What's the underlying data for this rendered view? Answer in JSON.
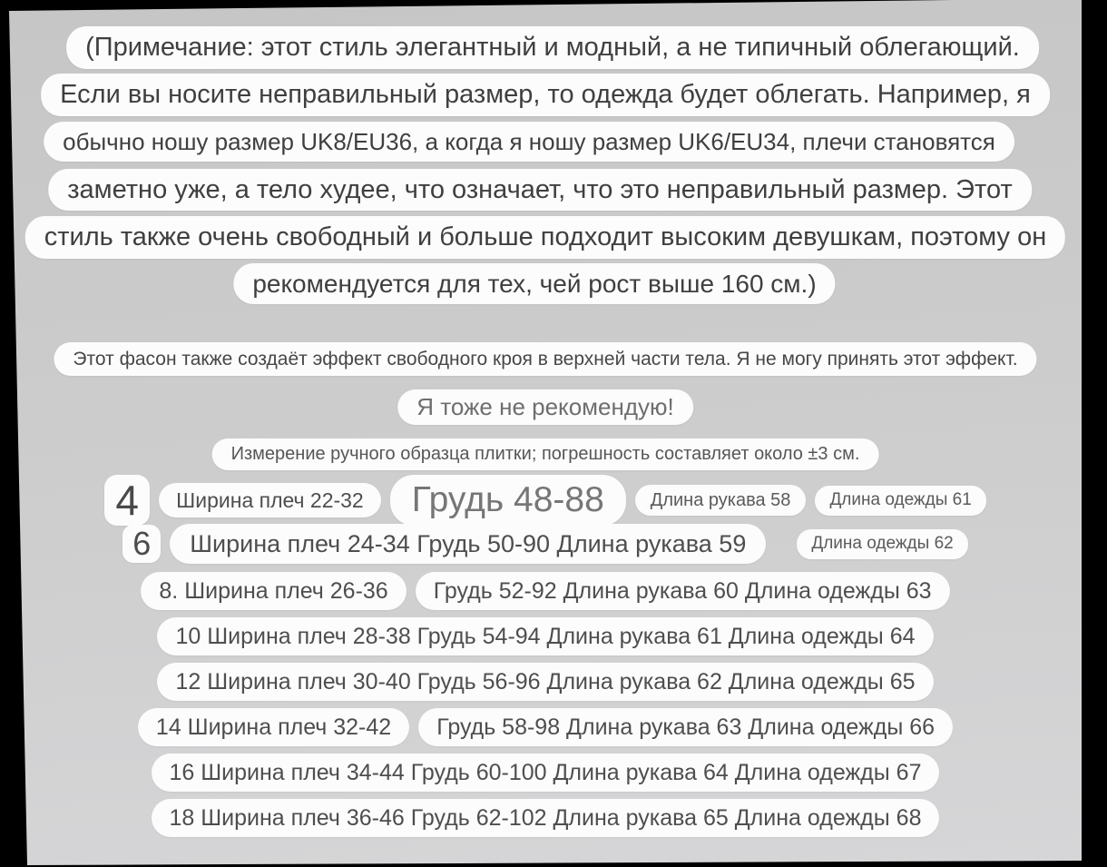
{
  "colors": {
    "frame": "#000000",
    "background_top": "#c6c6c6",
    "background_bottom": "#d6d6d8",
    "bubble": "#fcfcfc",
    "text": "#3f3f3f"
  },
  "messages": {
    "note_lines": [
      "(Примечание: этот стиль элегантный и модный, а не типичный облегающий.",
      "Если вы носите неправильный размер, то одежда будет облегать. Например, я",
      "обычно ношу размер UK8/EU36, а когда я ношу размер UK6/EU34, плечи становятся",
      "заметно уже, а тело худее, что означает, что это неправильный размер. Этот",
      "стиль также очень свободный и больше подходит высоким девушкам, поэтому он",
      "рекомендуется для тех, чей рост выше 160 см.)"
    ],
    "effect_note": "Этот фасон также создаёт эффект свободного кроя в верхней части тела. Я не могу принять этот эффект.",
    "recommendation": "Я тоже не рекомендую!",
    "measurement_note": "Измерение ручного образца плитки; погрешность составляет около ±3 см."
  },
  "size_table": {
    "rows": [
      {
        "size": "4",
        "segments": [
          {
            "variant": "chip-lg",
            "text": "4"
          },
          {
            "variant": "md",
            "text": "Ширина плеч 22-32"
          },
          {
            "variant": "xl",
            "text": "Грудь 48-88"
          },
          {
            "variant": "sm",
            "text": "Длина рукава 58"
          },
          {
            "variant": "xs",
            "text": "Длина одежды 61"
          }
        ]
      },
      {
        "size": "6",
        "segments": [
          {
            "variant": "chip-md",
            "text": "6"
          },
          {
            "variant": "wide",
            "text": "Ширина плеч 24-34 Грудь 50-90 Длина рукава 59"
          },
          {
            "variant": "xs",
            "text": "Длина одежды 62",
            "gap_before": true
          }
        ]
      },
      {
        "size": "8",
        "segments": [
          {
            "variant": "std",
            "text": "8. Ширина плеч 26-36"
          },
          {
            "variant": "std",
            "text": "Грудь 52-92 Длина рукава 60 Длина одежды 63"
          }
        ]
      },
      {
        "size": "10",
        "segments": [
          {
            "variant": "std",
            "text": "10 Ширина плеч 28-38 Грудь 54-94 Длина рукава 61 Длина одежды 64"
          }
        ]
      },
      {
        "size": "12",
        "segments": [
          {
            "variant": "std",
            "text": "12 Ширина плеч 30-40 Грудь 56-96 Длина рукава 62 Длина одежды 65"
          }
        ]
      },
      {
        "size": "14",
        "segments": [
          {
            "variant": "std",
            "text": "14 Ширина плеч 32-42"
          },
          {
            "variant": "std",
            "text": "Грудь 58-98 Длина рукава 63 Длина одежды 66"
          }
        ]
      },
      {
        "size": "16",
        "segments": [
          {
            "variant": "std",
            "text": "16 Ширина плеч 34-44 Грудь 60-100 Длина рукава 64 Длина одежды 67"
          }
        ]
      },
      {
        "size": "18",
        "segments": [
          {
            "variant": "std",
            "text": "18 Ширина плеч 36-46 Грудь 62-102 Длина рукава 65 Длина одежды 68"
          }
        ]
      }
    ]
  }
}
